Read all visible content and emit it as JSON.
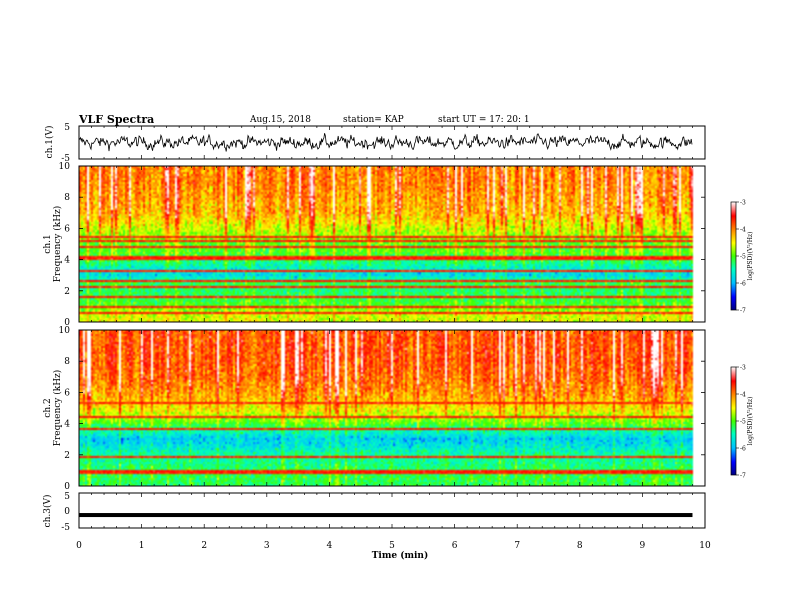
{
  "header": {
    "title": "VLF Spectra",
    "date": "Aug.15, 2018",
    "station": "station= KAP",
    "start": "start UT = 17: 20: 1"
  },
  "chart_data": [
    {
      "type": "line",
      "panel": "ch1-waveform",
      "ylabel": "ch.1(V)",
      "ylim": [
        -5,
        5
      ],
      "yticks": [
        "5",
        "-5"
      ],
      "xlim": [
        0,
        10
      ],
      "approx_range_volts": [
        -3.5,
        3.5
      ],
      "note": "noisy waveform oscillating roughly between -3.5 V and 3.5 V over 0–9.8 min"
    },
    {
      "type": "heatmap",
      "panel": "ch1-spectrogram",
      "ylabel": "ch.1",
      "ylabel2": "Frequency (kHz)",
      "ylim": [
        0,
        10
      ],
      "yticks": [
        "0",
        "2",
        "4",
        "6",
        "8",
        "10"
      ],
      "xlim": [
        0,
        10
      ],
      "data_end_min": 9.8,
      "colorbar": {
        "label": "log(PSD)(V²/Hz)",
        "range": [
          -7,
          -3
        ],
        "ticks": [
          "-3",
          "-4",
          "-5",
          "-6",
          "-7"
        ]
      },
      "freq_profile_log_psd": [
        {
          "kHz": 0.5,
          "v": -4.6
        },
        {
          "kHz": 1.0,
          "v": -5.0
        },
        {
          "kHz": 1.5,
          "v": -5.2
        },
        {
          "kHz": 2.0,
          "v": -5.3
        },
        {
          "kHz": 2.5,
          "v": -5.2
        },
        {
          "kHz": 3.0,
          "v": -5.8
        },
        {
          "kHz": 3.5,
          "v": -5.6
        },
        {
          "kHz": 4.0,
          "v": -5.2
        },
        {
          "kHz": 4.5,
          "v": -5.0
        },
        {
          "kHz": 5.0,
          "v": -5.0
        },
        {
          "kHz": 5.5,
          "v": -4.8
        },
        {
          "kHz": 6.0,
          "v": -4.6
        },
        {
          "kHz": 7.0,
          "v": -4.2
        },
        {
          "kHz": 8.0,
          "v": -4.1
        },
        {
          "kHz": 9.0,
          "v": -4.0
        },
        {
          "kHz": 10.0,
          "v": -4.0
        }
      ],
      "line_frequencies_kHz": [
        0.6,
        1.0,
        1.6,
        2.3,
        2.6,
        3.3,
        4.1,
        4.8,
        5.2,
        5.5
      ]
    },
    {
      "type": "heatmap",
      "panel": "ch2-spectrogram",
      "ylabel": "ch.2",
      "ylabel2": "Frequency (kHz)",
      "ylim": [
        0,
        10
      ],
      "yticks": [
        "0",
        "2",
        "4",
        "6",
        "8",
        "10"
      ],
      "xlim": [
        0,
        10
      ],
      "data_end_min": 9.8,
      "colorbar": {
        "label": "log(PSD)(V²/Hz)",
        "range": [
          -7,
          -3
        ],
        "ticks": [
          "-3",
          "-4",
          "-5",
          "-6",
          "-7"
        ]
      },
      "freq_profile_log_psd": [
        {
          "kHz": 0.5,
          "v": -5.2
        },
        {
          "kHz": 1.0,
          "v": -5.2
        },
        {
          "kHz": 1.5,
          "v": -5.4
        },
        {
          "kHz": 2.0,
          "v": -5.4
        },
        {
          "kHz": 2.5,
          "v": -5.7
        },
        {
          "kHz": 3.0,
          "v": -5.9
        },
        {
          "kHz": 3.5,
          "v": -5.5
        },
        {
          "kHz": 4.0,
          "v": -5.0
        },
        {
          "kHz": 4.5,
          "v": -4.7
        },
        {
          "kHz": 5.0,
          "v": -4.4
        },
        {
          "kHz": 6.0,
          "v": -4.1
        },
        {
          "kHz": 7.0,
          "v": -3.9
        },
        {
          "kHz": 8.0,
          "v": -3.8
        },
        {
          "kHz": 9.0,
          "v": -3.8
        },
        {
          "kHz": 10.0,
          "v": -3.8
        }
      ],
      "line_frequencies_kHz": [
        0.9,
        1.9,
        3.6,
        4.4,
        5.3
      ]
    },
    {
      "type": "line",
      "panel": "ch3-waveform",
      "ylabel": "ch.3(V)",
      "ylim": [
        -5,
        5
      ],
      "yticks": [
        "5",
        "0",
        "-5"
      ],
      "xlim": [
        0,
        10
      ],
      "approx_value_volts": -1.3,
      "note": "nearly constant thick trace at about -1.3 V over 0–9.8 min"
    }
  ],
  "x_axis": {
    "label": "Time (min)",
    "ticks": [
      "0",
      "1",
      "2",
      "3",
      "4",
      "5",
      "6",
      "7",
      "8",
      "9",
      "10"
    ]
  },
  "colormap": [
    "#000080",
    "#0000ff",
    "#0080ff",
    "#00e5ff",
    "#00ff80",
    "#40ff00",
    "#ffff00",
    "#ff8000",
    "#ff0000",
    "#ffffff"
  ]
}
